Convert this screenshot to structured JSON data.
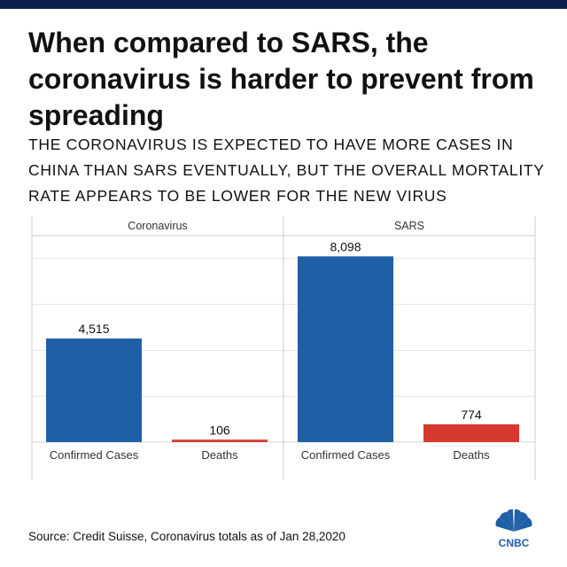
{
  "header": {
    "title": "When compared to SARS, the coronavirus is harder to prevent from spreading",
    "subtitle": "THE CORONAVIRUS IS EXPECTED TO HAVE MORE CASES IN CHINA THAN SARS EVENTUALLY, BUT THE OVERALL MORTALITY RATE APPEARS TO BE LOWER FOR THE NEW VIRUS"
  },
  "footer": {
    "source": "Source: Credit Suisse, Coronavirus totals as of Jan 28,2020",
    "logo_text": "CNBC"
  },
  "colors": {
    "cases": "#1f5fa6",
    "deaths": "#d63a2f",
    "grid": "#e4e4e4",
    "panel_border": "#cccccc",
    "brand_bar": "#0d1f4a"
  },
  "chart_data": {
    "type": "bar",
    "title": "When compared to SARS, the coronavirus is harder to prevent from spreading",
    "ylim": [
      0,
      9000
    ],
    "grid": true,
    "panels": [
      {
        "name": "Coronavirus",
        "categories": [
          "Confirmed Cases",
          "Deaths"
        ],
        "values": [
          4515,
          106
        ],
        "labels": [
          "4,515",
          "106"
        ]
      },
      {
        "name": "SARS",
        "categories": [
          "Confirmed Cases",
          "Deaths"
        ],
        "values": [
          8098,
          774
        ],
        "labels": [
          "8,098",
          "774"
        ]
      }
    ]
  }
}
